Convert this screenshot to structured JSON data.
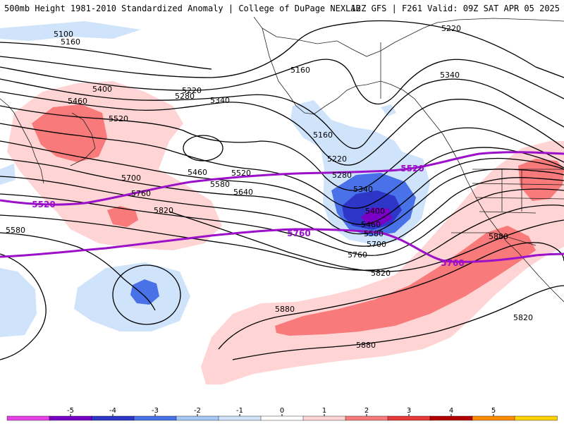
{
  "header": {
    "title_left": "500mb Height 1981-2010 Standardized Anomaly | College of DuPage NEXLAB",
    "title_right": "12Z GFS | F261 Valid: 09Z SAT APR 05 2025"
  },
  "map": {
    "contour_labels": [
      "5100",
      "5160",
      "5220",
      "5340",
      "5160",
      "5400",
      "5460",
      "5520",
      "5220",
      "5280",
      "5340",
      "5160",
      "5220",
      "5460",
      "5520",
      "5580",
      "5640",
      "5700",
      "5760",
      "5820",
      "5580",
      "5280",
      "5340",
      "5400",
      "5460",
      "5580",
      "5700",
      "5760",
      "5820",
      "5880",
      "5880",
      "5880",
      "5820"
    ],
    "highlight_labels": [
      "5520",
      "5520",
      "5760",
      "5760"
    ]
  },
  "legend": {
    "tick_labels": [
      "-5",
      "-4",
      "-3",
      "-2",
      "-1",
      "0",
      "1",
      "2",
      "3",
      "4",
      "5"
    ],
    "colors": [
      "#e640e6",
      "#7a00c8",
      "#2e36c8",
      "#4a72e8",
      "#a6c8f6",
      "#cfe3fb",
      "#ffffff",
      "#ffd4d4",
      "#f87a7a",
      "#e83a3a",
      "#b40000",
      "#ff8c00",
      "#ffd200"
    ]
  },
  "colors": {
    "contour": "#000000",
    "highlight_contour": "#9b10c8",
    "coast": "#222222"
  }
}
